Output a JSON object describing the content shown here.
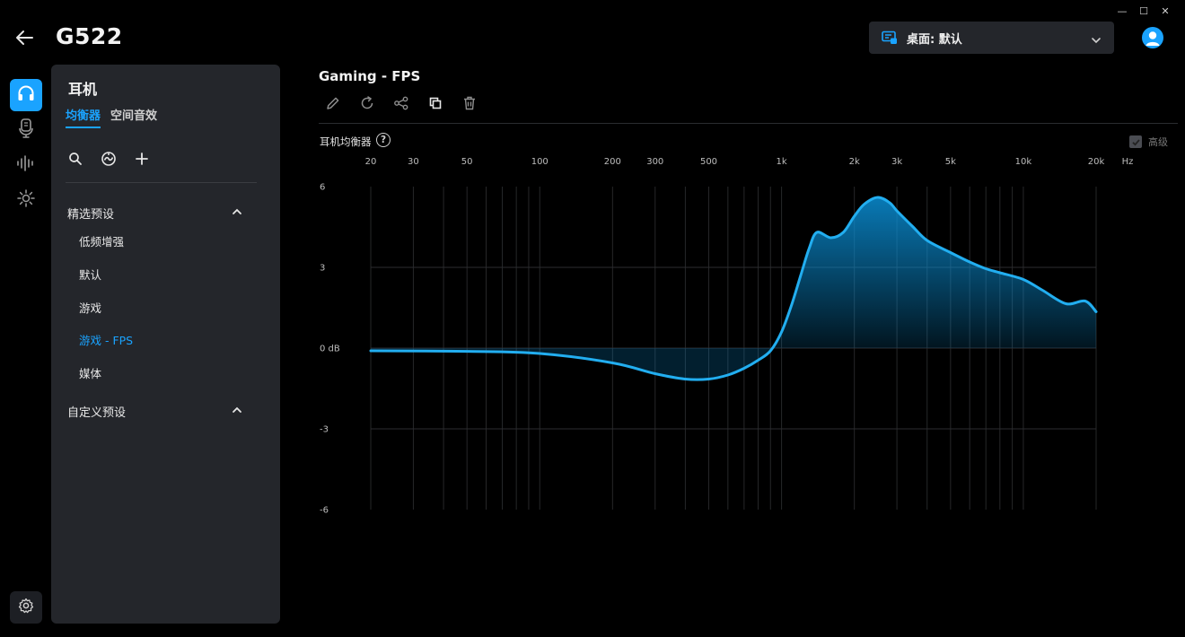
{
  "window": {
    "minimize": "—",
    "maximize": "☐",
    "close": "✕"
  },
  "header": {
    "device": "G522",
    "profile": "桌面: 默认"
  },
  "rail": {
    "items": [
      "headphones-icon",
      "microphone-icon",
      "sound-wave-icon",
      "lighting-icon"
    ],
    "active": 0,
    "settings": "gear-icon"
  },
  "panel": {
    "title": "耳机",
    "tabs": [
      {
        "label": "均衡器",
        "active": true
      },
      {
        "label": "空间音效",
        "active": false
      }
    ],
    "tools": [
      "search-icon",
      "preset-gallery-icon",
      "add-icon"
    ],
    "featured": {
      "label": "精选预设",
      "items": [
        {
          "label": "低频增强",
          "selected": false
        },
        {
          "label": "默认",
          "selected": false
        },
        {
          "label": "游戏",
          "selected": false
        },
        {
          "label": "游戏 - FPS",
          "selected": true
        },
        {
          "label": "媒体",
          "selected": false
        }
      ]
    },
    "custom": {
      "label": "自定义预设"
    }
  },
  "main": {
    "title": "Gaming - FPS",
    "tools": [
      "edit-icon",
      "reset-icon",
      "share-icon",
      "duplicate-icon",
      "delete-icon"
    ],
    "eq_label": "耳机均衡器",
    "help": "?",
    "advanced_label": "高级",
    "advanced_checked": true
  },
  "colors": {
    "accent": "#1aa3ff",
    "curve": "#22aef0",
    "panel": "#24262b",
    "background": "#000000"
  },
  "chart_data": {
    "type": "area",
    "title": "",
    "xlabel": "Hz",
    "ylabel": "",
    "x_scale": "log",
    "xlim": [
      20,
      20000
    ],
    "ylim": [
      -6,
      6
    ],
    "x_ticks": [
      {
        "value": 20,
        "label": "20"
      },
      {
        "value": 30,
        "label": "30"
      },
      {
        "value": 50,
        "label": "50"
      },
      {
        "value": 100,
        "label": "100"
      },
      {
        "value": 200,
        "label": "200"
      },
      {
        "value": 300,
        "label": "300"
      },
      {
        "value": 500,
        "label": "500"
      },
      {
        "value": 1000,
        "label": "1k"
      },
      {
        "value": 2000,
        "label": "2k"
      },
      {
        "value": 3000,
        "label": "3k"
      },
      {
        "value": 5000,
        "label": "5k"
      },
      {
        "value": 10000,
        "label": "10k"
      },
      {
        "value": 20000,
        "label": "20k"
      }
    ],
    "y_ticks": [
      {
        "value": 6,
        "label": "6"
      },
      {
        "value": 3,
        "label": "3"
      },
      {
        "value": 0,
        "label": "0 dB"
      },
      {
        "value": -3,
        "label": "-3"
      },
      {
        "value": -6,
        "label": "-6"
      }
    ],
    "minor_gridlines": [
      40,
      60,
      70,
      80,
      90,
      400,
      600,
      700,
      800,
      900,
      4000,
      6000,
      7000,
      8000,
      9000
    ],
    "grid": true,
    "series": [
      {
        "x": [
          20,
          50,
          100,
          200,
          300,
          400,
          500,
          600,
          700,
          800,
          900,
          1000,
          1100,
          1200,
          1300,
          1400,
          1600,
          1800,
          2000,
          2200,
          2500,
          2800,
          3000,
          3500,
          4000,
          5000,
          6000,
          7000,
          8000,
          10000,
          12000,
          15000,
          18000,
          20000
        ],
        "values": [
          -0.1,
          -0.12,
          -0.2,
          -0.55,
          -0.95,
          -1.15,
          -1.15,
          -1.0,
          -0.75,
          -0.45,
          -0.1,
          0.6,
          1.6,
          2.7,
          3.7,
          4.3,
          4.1,
          4.3,
          4.9,
          5.35,
          5.6,
          5.4,
          5.1,
          4.5,
          4.0,
          3.55,
          3.2,
          2.95,
          2.8,
          2.55,
          2.15,
          1.65,
          1.75,
          1.35
        ]
      }
    ]
  }
}
